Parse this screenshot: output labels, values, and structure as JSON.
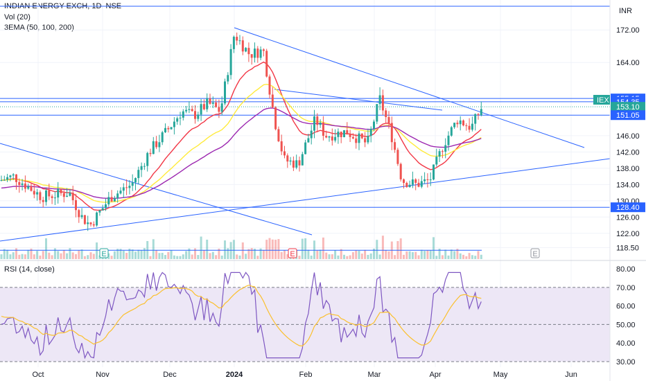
{
  "header": {
    "symbol_line": "INDIAN ENERGY EXCH, 1D, NSE",
    "volume_label": "Vol (20)",
    "ema_label": "3EMA (50, 100, 200)",
    "rsi_label": "RSI (14, close)",
    "currency": "INR",
    "ticker_tag": "IEX"
  },
  "chart_data": [
    {
      "type": "candlestick",
      "title": "",
      "x": [
        "Oct",
        "Nov",
        "Dec",
        "2024",
        "Feb",
        "Mar",
        "Apr",
        "May",
        "Jun"
      ],
      "price_ticks": [
        172.0,
        164.0,
        155.15,
        154.35,
        153.1,
        151.05,
        146.0,
        142.0,
        138.0,
        134.0,
        130.0,
        128.4,
        126.0,
        122.0,
        118.5
      ],
      "highlighted_levels": [
        {
          "label": "155.15",
          "value": 155.15,
          "color": "#2962ff"
        },
        {
          "label": "154.35",
          "value": 154.35,
          "color": "#2962ff"
        },
        {
          "label": "153.10",
          "value": 153.1,
          "color": "#26a69a"
        },
        {
          "label": "151.05",
          "value": 151.05,
          "color": "#2962ff"
        },
        {
          "label": "128.40",
          "value": 128.4,
          "color": "#2962ff"
        }
      ],
      "ylim": [
        116,
        178
      ],
      "last_close": 153.1,
      "series": [
        {
          "name": "EMA 50",
          "color": "#f23645"
        },
        {
          "name": "EMA 100",
          "color": "#ffeb3b"
        },
        {
          "name": "EMA 200",
          "color": "#9c27b0"
        }
      ],
      "markers": [
        {
          "label": "E",
          "date": "Oct 26",
          "color": "#26a69a"
        },
        {
          "label": "E",
          "date": "Jan 24",
          "color": "#f23645"
        },
        {
          "label": "E",
          "date": "Apr 30",
          "color": "#9598a1"
        }
      ]
    },
    {
      "type": "line",
      "title": "",
      "y_ticks": [
        80.0,
        70.0,
        60.0,
        50.0,
        40.0,
        30.0
      ],
      "ylim": [
        27,
        83
      ],
      "bands": [
        70,
        50,
        30
      ],
      "series": [
        {
          "name": "RSI",
          "color": "#7e57c2"
        },
        {
          "name": "RSI MA",
          "color": "#fbc02d"
        }
      ]
    }
  ],
  "colors": {
    "up": "#26a69a",
    "down": "#ef5350",
    "trendline": "#2962ff",
    "rsi_bg": "#ede7f6"
  }
}
